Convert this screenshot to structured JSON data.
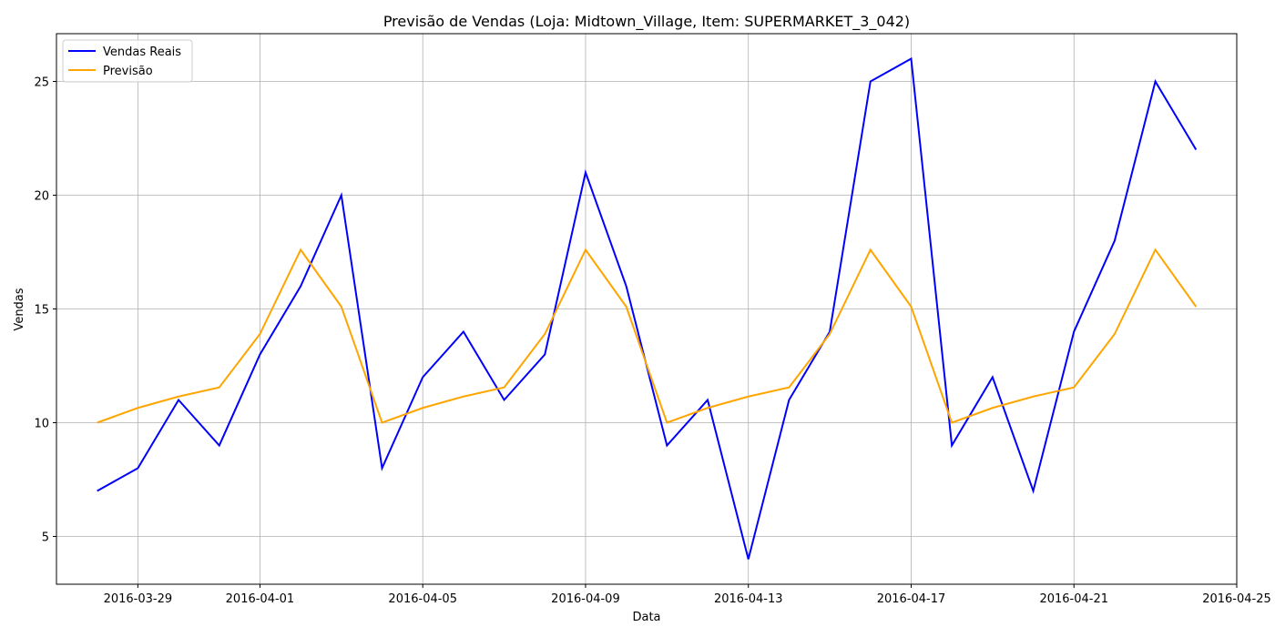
{
  "chart_data": {
    "type": "line",
    "title": "Previsão de Vendas (Loja: Midtown_Village, Item: SUPERMARKET_3_042)",
    "xlabel": "Data",
    "ylabel": "Vendas",
    "x": [
      "2016-03-28",
      "2016-03-29",
      "2016-03-30",
      "2016-03-31",
      "2016-04-01",
      "2016-04-02",
      "2016-04-03",
      "2016-04-04",
      "2016-04-05",
      "2016-04-06",
      "2016-04-07",
      "2016-04-08",
      "2016-04-09",
      "2016-04-10",
      "2016-04-11",
      "2016-04-12",
      "2016-04-13",
      "2016-04-14",
      "2016-04-15",
      "2016-04-16",
      "2016-04-17",
      "2016-04-18",
      "2016-04-19",
      "2016-04-20",
      "2016-04-21",
      "2016-04-22",
      "2016-04-23",
      "2016-04-24"
    ],
    "xlim": [
      "2016-03-27",
      "2016-04-25"
    ],
    "ylim": [
      2.9,
      27.1
    ],
    "x_ticks": [
      "2016-03-29",
      "2016-04-01",
      "2016-04-05",
      "2016-04-09",
      "2016-04-13",
      "2016-04-17",
      "2016-04-21",
      "2016-04-25"
    ],
    "y_ticks": [
      5,
      10,
      15,
      20,
      25
    ],
    "grid": true,
    "legend_position": "top-left",
    "series": [
      {
        "name": "Vendas Reais",
        "color": "#0000ff",
        "values": [
          7,
          8,
          11,
          9,
          13,
          16,
          20,
          8,
          12,
          14,
          11,
          13,
          21,
          16,
          9,
          11,
          4,
          11,
          14,
          25,
          26,
          9,
          12,
          7,
          14,
          18,
          25,
          22
        ]
      },
      {
        "name": "Previsão",
        "color": "#ffa500",
        "values": [
          10.0,
          10.65,
          11.15,
          11.55,
          13.9,
          17.6,
          15.1,
          10.0,
          10.65,
          11.15,
          11.55,
          13.9,
          17.6,
          15.1,
          10.0,
          10.65,
          11.15,
          11.55,
          13.9,
          17.6,
          15.1,
          10.0,
          10.65,
          11.15,
          11.55,
          13.9,
          17.6,
          15.1
        ]
      }
    ]
  }
}
